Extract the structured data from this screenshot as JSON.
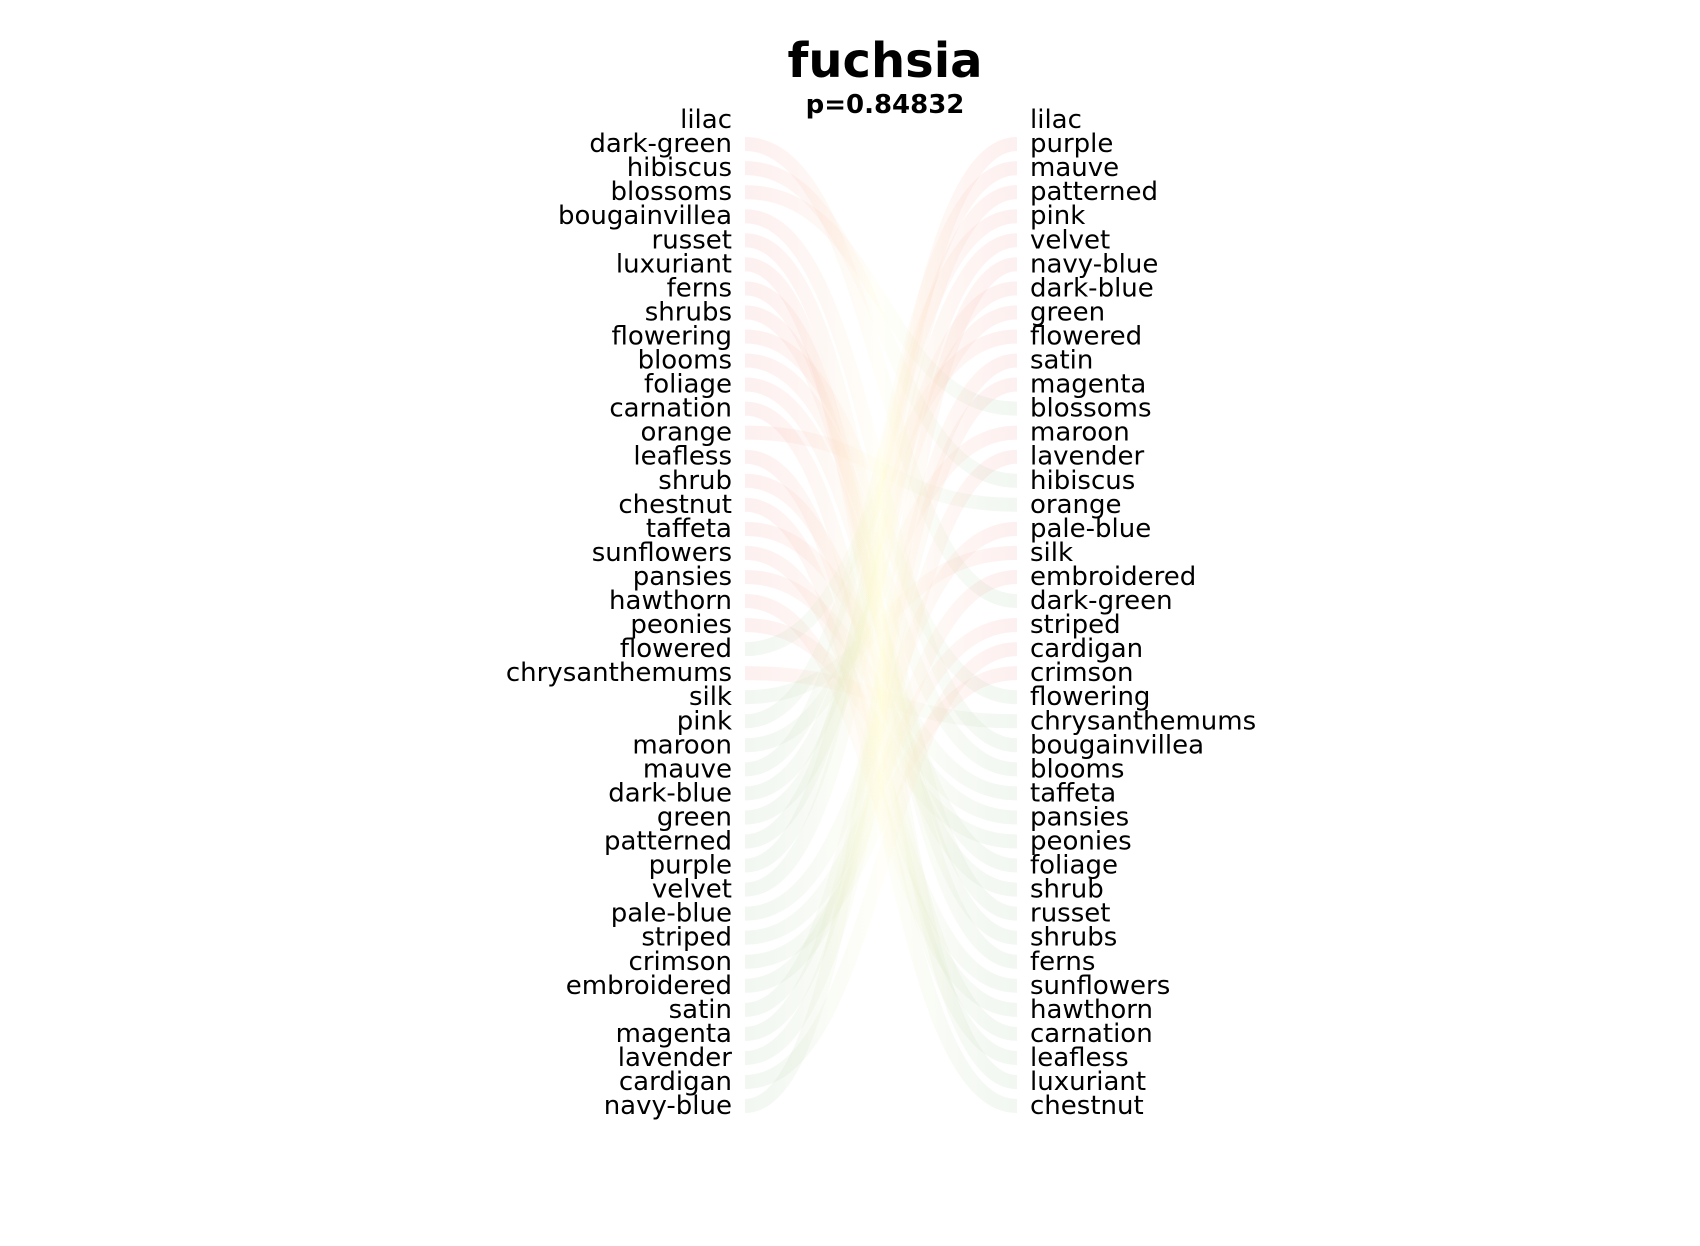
{
  "chart_data": {
    "type": "bump",
    "title": "fuchsia",
    "subtitle": "p=0.84832",
    "left_ranking": [
      "lilac",
      "dark-green",
      "hibiscus",
      "blossoms",
      "bougainvillea",
      "russet",
      "luxuriant",
      "ferns",
      "shrubs",
      "flowering",
      "blooms",
      "foliage",
      "carnation",
      "orange",
      "leafless",
      "shrub",
      "chestnut",
      "taffeta",
      "sunflowers",
      "pansies",
      "hawthorn",
      "peonies",
      "flowered",
      "chrysanthemums",
      "silk",
      "pink",
      "maroon",
      "mauve",
      "dark-blue",
      "green",
      "patterned",
      "purple",
      "velvet",
      "pale-blue",
      "striped",
      "crimson",
      "embroidered",
      "satin",
      "magenta",
      "lavender",
      "cardigan",
      "navy-blue"
    ],
    "right_ranking": [
      "lilac",
      "purple",
      "mauve",
      "patterned",
      "pink",
      "velvet",
      "navy-blue",
      "dark-blue",
      "green",
      "flowered",
      "satin",
      "magenta",
      "blossoms",
      "maroon",
      "lavender",
      "hibiscus",
      "orange",
      "pale-blue",
      "silk",
      "embroidered",
      "dark-green",
      "striped",
      "cardigan",
      "crimson",
      "flowering",
      "chrysanthemums",
      "bougainvillea",
      "blooms",
      "taffeta",
      "pansies",
      "peonies",
      "foliage",
      "shrub",
      "russet",
      "shrubs",
      "ferns",
      "sunflowers",
      "hawthorn",
      "carnation",
      "leafless",
      "luxuriant",
      "chestnut"
    ],
    "colors": {
      "falling": "#f08080",
      "rising": "#8fbc8f",
      "neutral": "#fffacd"
    },
    "grid": false,
    "legend": "none"
  }
}
